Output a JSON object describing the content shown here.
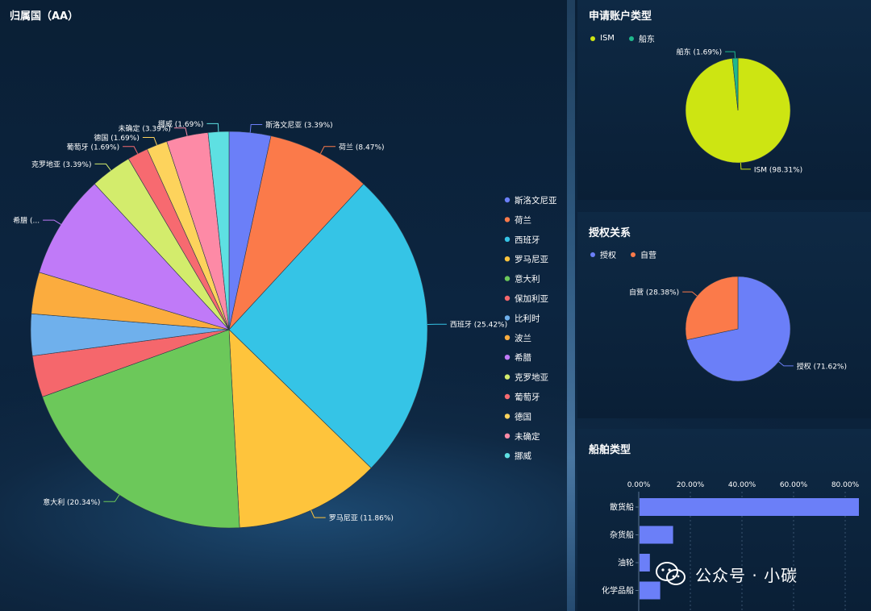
{
  "main_chart": {
    "title": "归属国（AA）",
    "chart_data": {
      "type": "pie",
      "slices": [
        {
          "name": "斯洛文尼亚",
          "label": "斯洛文尼亚 (3.39%)",
          "value": 3.39,
          "color": "#6b7ff8"
        },
        {
          "name": "荷兰",
          "label": "荷兰 (8.47%)",
          "value": 8.47,
          "color": "#fb7a4a"
        },
        {
          "name": "西班牙",
          "label": "西班牙 (25.42%)",
          "value": 25.42,
          "color": "#35c4e6"
        },
        {
          "name": "罗马尼亚",
          "label": "罗马尼亚 (11.86%)",
          "value": 11.86,
          "color": "#fec43c"
        },
        {
          "name": "意大利",
          "label": "意大利 (20.34%)",
          "value": 20.34,
          "color": "#6cc85a"
        },
        {
          "name": "保加利亚",
          "label": "",
          "value": 3.39,
          "color": "#f5676c"
        },
        {
          "name": "比利时",
          "label": "",
          "value": 3.39,
          "color": "#6fb0ec"
        },
        {
          "name": "波兰",
          "label": "",
          "value": 3.39,
          "color": "#fbac3e"
        },
        {
          "name": "希腊",
          "label": "希腊 (...",
          "value": 8.47,
          "color": "#c07af8"
        },
        {
          "name": "克罗地亚",
          "label": "克罗地亚 (3.39%)",
          "value": 3.39,
          "color": "#d3ec6c"
        },
        {
          "name": "葡萄牙",
          "label": "葡萄牙 (1.69%)",
          "value": 1.69,
          "color": "#f76a70"
        },
        {
          "name": "德国",
          "label": "德国 (1.69%)",
          "value": 1.69,
          "color": "#fdd35c"
        },
        {
          "name": "未确定",
          "label": "未确定 (3.39%)",
          "value": 3.39,
          "color": "#fd8aa6"
        },
        {
          "name": "挪威",
          "label": "挪威 (1.69%)",
          "value": 1.69,
          "color": "#5ee0e2"
        }
      ]
    }
  },
  "account_chart": {
    "title": "申请账户类型",
    "chart_data": {
      "type": "pie",
      "slices": [
        {
          "name": "ISM",
          "label": "ISM (98.31%)",
          "value": 98.31,
          "color": "#cde512"
        },
        {
          "name": "船东",
          "label": "船东 (1.69%)",
          "value": 1.69,
          "color": "#1fb88c"
        }
      ]
    }
  },
  "auth_chart": {
    "title": "授权关系",
    "chart_data": {
      "type": "pie",
      "slices": [
        {
          "name": "授权",
          "label": "授权 (71.62%)",
          "value": 71.62,
          "color": "#6b7ff8"
        },
        {
          "name": "自营",
          "label": "自营 (28.38%)",
          "value": 28.38,
          "color": "#fb7a4a"
        }
      ]
    }
  },
  "ship_chart": {
    "title": "船舶类型",
    "chart_data": {
      "type": "bar",
      "orientation": "horizontal",
      "categories": [
        "散货船",
        "杂货船",
        "油轮",
        "化学品船"
      ],
      "values": [
        85,
        13,
        4,
        8
      ],
      "xlim": [
        0,
        85
      ],
      "xticks": [
        "0.00%",
        "20.00%",
        "40.00%",
        "60.00%",
        "80.00%"
      ],
      "tick_values": [
        0,
        20,
        40,
        60,
        80
      ],
      "unit": "%",
      "color": "#6b7ff8"
    }
  },
  "watermark": {
    "text": "公众号 · 小碳"
  }
}
